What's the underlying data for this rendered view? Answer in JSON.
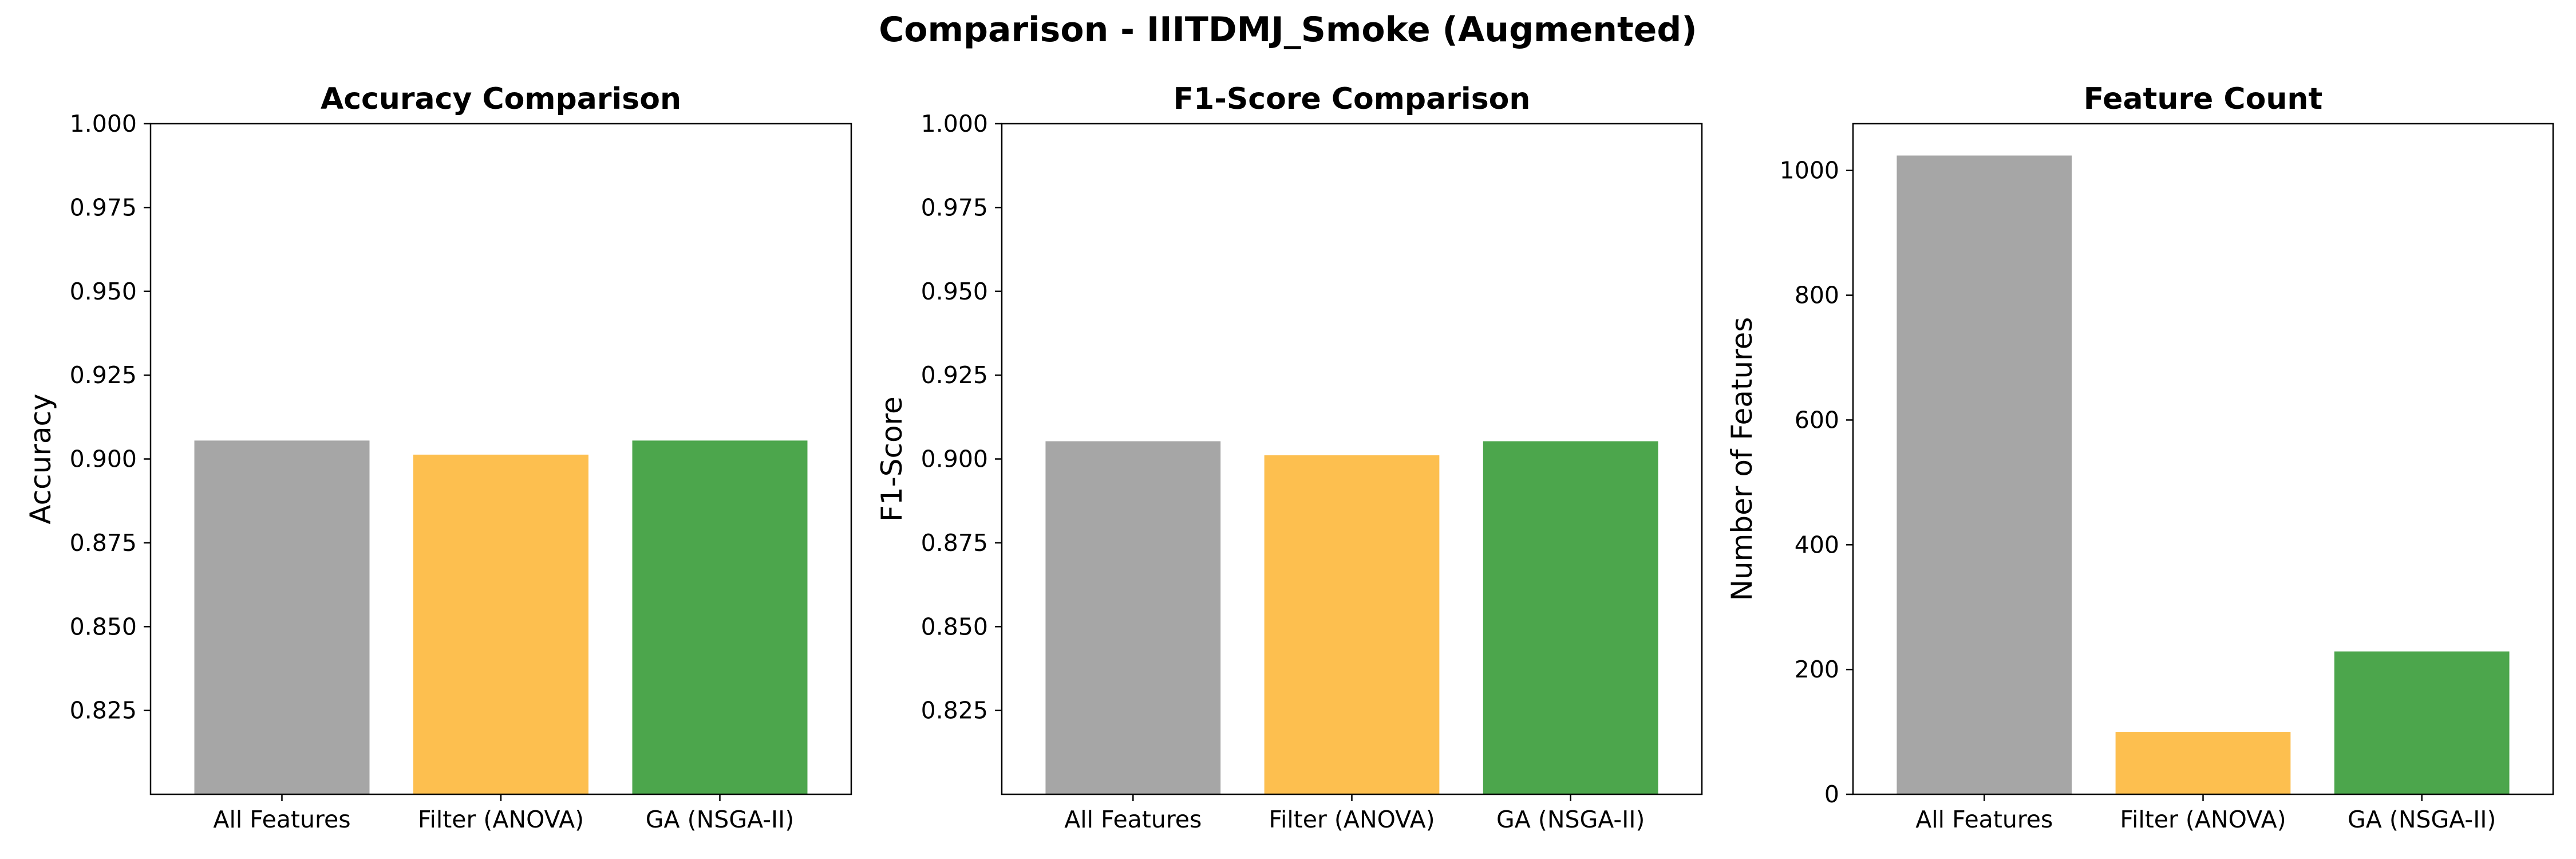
{
  "figure": {
    "suptitle": "Comparison - IIITDMJ_Smoke (Augmented)"
  },
  "chart_data": [
    {
      "type": "bar",
      "title": "Accuracy Comparison",
      "xlabel": "",
      "ylabel": "Accuracy",
      "categories": [
        "All Features",
        "Filter (ANOVA)",
        "GA (NSGA-II)"
      ],
      "values": [
        0.9055,
        0.9013,
        0.9055
      ],
      "colors": [
        "#a6a6a6",
        "#fdbf4f",
        "#4ca64c"
      ],
      "ylim": [
        0.8,
        1.0
      ],
      "yticks": [
        0.825,
        0.85,
        0.875,
        0.9,
        0.925,
        0.95,
        0.975,
        1.0
      ],
      "ytick_labels": [
        "0.825",
        "0.850",
        "0.875",
        "0.900",
        "0.925",
        "0.950",
        "0.975",
        "1.000"
      ],
      "grid": false
    },
    {
      "type": "bar",
      "title": "F1-Score Comparison",
      "xlabel": "",
      "ylabel": "F1-Score",
      "categories": [
        "All Features",
        "Filter (ANOVA)",
        "GA (NSGA-II)"
      ],
      "values": [
        0.9053,
        0.9011,
        0.9053
      ],
      "colors": [
        "#a6a6a6",
        "#fdbf4f",
        "#4ca64c"
      ],
      "ylim": [
        0.8,
        1.0
      ],
      "yticks": [
        0.825,
        0.85,
        0.875,
        0.9,
        0.925,
        0.95,
        0.975,
        1.0
      ],
      "ytick_labels": [
        "0.825",
        "0.850",
        "0.875",
        "0.900",
        "0.925",
        "0.950",
        "0.975",
        "1.000"
      ],
      "grid": false
    },
    {
      "type": "bar",
      "title": "Feature Count",
      "xlabel": "",
      "ylabel": "Number of Features",
      "categories": [
        "All Features",
        "Filter (ANOVA)",
        "GA (NSGA-II)"
      ],
      "values": [
        1024,
        100,
        229
      ],
      "colors": [
        "#a6a6a6",
        "#fdbf4f",
        "#4ca64c"
      ],
      "ylim": [
        0,
        1075
      ],
      "yticks": [
        0,
        200,
        400,
        600,
        800,
        1000
      ],
      "ytick_labels": [
        "0",
        "200",
        "400",
        "600",
        "800",
        "1000"
      ],
      "grid": false
    }
  ]
}
